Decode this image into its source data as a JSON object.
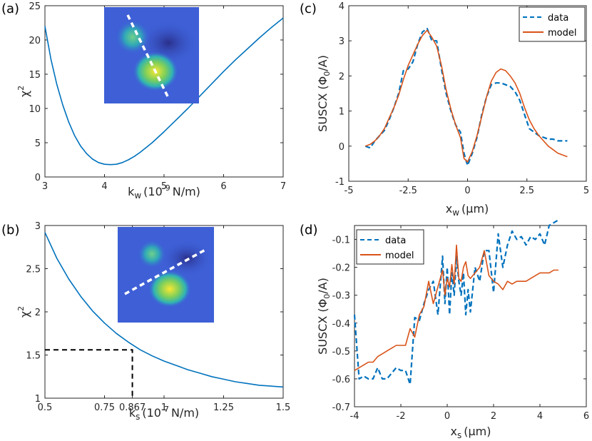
{
  "colors": {
    "data": "#0072BD",
    "model": "#D95319",
    "axis": "#262626",
    "dashed_ref": "#000000"
  },
  "chart_data": [
    {
      "id": "a",
      "panel_label": "(a)",
      "type": "line",
      "xlabel": "k",
      "xlabel_sub": "w",
      "xlabel_rest": "(10",
      "xlabel_sup": "-9",
      "xlabel_tail": "N/m)",
      "ylabel": "χ",
      "ylabel_sup": "2",
      "xlim": [
        3,
        7
      ],
      "ylim": [
        0,
        25
      ],
      "xticks": [
        3,
        4,
        5,
        6,
        7
      ],
      "xtick_labels": [
        "3",
        "4",
        "5",
        "6",
        "7"
      ],
      "yticks": [
        0,
        5,
        10,
        15,
        20,
        25
      ],
      "ytick_labels": [
        "0",
        "5",
        "10",
        "15",
        "20",
        "25"
      ],
      "series": [
        {
          "name": "chi2",
          "color_key": "data",
          "style": "solid",
          "x": [
            3.0,
            3.1,
            3.2,
            3.3,
            3.4,
            3.5,
            3.6,
            3.7,
            3.8,
            3.9,
            4.0,
            4.1,
            4.2,
            4.3,
            4.4,
            4.5,
            4.6,
            4.8,
            5.0,
            5.2,
            5.4,
            5.6,
            5.8,
            6.0,
            6.2,
            6.4,
            6.6,
            6.8,
            7.0
          ],
          "y": [
            22.0,
            17.2,
            13.5,
            10.5,
            8.0,
            6.0,
            4.5,
            3.4,
            2.6,
            2.1,
            1.85,
            1.8,
            1.85,
            2.1,
            2.5,
            3.0,
            3.6,
            5.0,
            6.6,
            8.3,
            10.0,
            11.8,
            13.6,
            15.4,
            17.1,
            18.7,
            20.3,
            21.8,
            23.2
          ]
        }
      ],
      "inset": "image of two magnetic spots with white dashed line cut"
    },
    {
      "id": "b",
      "panel_label": "(b)",
      "type": "line",
      "xlabel": "k",
      "xlabel_sub": "s",
      "xlabel_rest": "(10",
      "xlabel_sup": "-7",
      "xlabel_tail": "N/m)",
      "ylabel": "χ",
      "ylabel_sup": "2",
      "xlim": [
        0.5,
        1.5
      ],
      "ylim": [
        1,
        3
      ],
      "xticks": [
        0.5,
        0.75,
        0.867,
        1.0,
        1.25,
        1.5
      ],
      "xtick_labels": [
        "0.5",
        "0.75",
        "0.867",
        "1",
        "1.25",
        "1.5"
      ],
      "yticks": [
        1,
        1.5,
        2,
        2.5,
        3
      ],
      "ytick_labels": [
        "1",
        "1.5",
        "2",
        "2.5",
        "3"
      ],
      "series": [
        {
          "name": "chi2",
          "color_key": "data",
          "style": "solid",
          "x": [
            0.5,
            0.55,
            0.6,
            0.65,
            0.7,
            0.75,
            0.8,
            0.85,
            0.9,
            0.95,
            1.0,
            1.05,
            1.1,
            1.15,
            1.2,
            1.25,
            1.3,
            1.35,
            1.4,
            1.45,
            1.5
          ],
          "y": [
            2.92,
            2.62,
            2.38,
            2.18,
            2.01,
            1.87,
            1.75,
            1.65,
            1.56,
            1.49,
            1.43,
            1.38,
            1.33,
            1.29,
            1.25,
            1.22,
            1.19,
            1.17,
            1.15,
            1.14,
            1.13
          ]
        }
      ],
      "reference": {
        "x": 0.867,
        "y": 1.56
      },
      "inset": "image of two magnetic spots with white dashed line cut"
    },
    {
      "id": "c",
      "panel_label": "(c)",
      "type": "line",
      "xlabel": "x",
      "xlabel_sub": "w",
      "xlabel_rest": "(",
      "xlabel_mu": "μm)",
      "ylabel": "SUSCX (Φ",
      "ylabel_sub": "0",
      "ylabel_tail": "/A)",
      "xlim": [
        -5,
        5
      ],
      "ylim": [
        -1,
        4
      ],
      "xticks": [
        -5,
        -2.5,
        0,
        2.5,
        5
      ],
      "xtick_labels": [
        "-5",
        "-2.5",
        "0",
        "2.5",
        "5"
      ],
      "yticks": [
        -1,
        0,
        1,
        2,
        3,
        4
      ],
      "ytick_labels": [
        "-1",
        "0",
        "1",
        "2",
        "3",
        "4"
      ],
      "legend": {
        "position": "top-right",
        "entries": [
          "data",
          "model"
        ]
      },
      "series": [
        {
          "name": "data",
          "color_key": "data",
          "style": "dashed",
          "x": [
            -4.3,
            -4.1,
            -3.9,
            -3.7,
            -3.5,
            -3.3,
            -3.1,
            -2.9,
            -2.7,
            -2.5,
            -2.3,
            -2.1,
            -1.9,
            -1.7,
            -1.5,
            -1.3,
            -1.1,
            -0.9,
            -0.7,
            -0.5,
            -0.3,
            -0.15,
            0.0,
            0.2,
            0.4,
            0.6,
            0.8,
            1.0,
            1.2,
            1.4,
            1.6,
            1.8,
            2.0,
            2.2,
            2.4,
            2.6,
            2.8,
            3.0,
            3.2,
            3.4,
            3.6,
            3.8,
            4.0,
            4.2
          ],
          "y": [
            0.0,
            -0.05,
            0.15,
            0.3,
            0.45,
            0.75,
            1.1,
            1.5,
            2.15,
            2.2,
            2.4,
            2.9,
            3.25,
            3.35,
            3.0,
            3.0,
            2.2,
            1.5,
            1.0,
            0.6,
            0.4,
            -0.2,
            -0.55,
            -0.2,
            0.25,
            0.9,
            1.4,
            1.75,
            1.8,
            1.8,
            1.75,
            1.7,
            1.55,
            1.3,
            0.9,
            0.5,
            0.4,
            0.3,
            0.25,
            0.2,
            0.2,
            0.15,
            0.15,
            0.15
          ]
        },
        {
          "name": "model",
          "color_key": "model",
          "style": "solid",
          "x": [
            -4.3,
            -4.1,
            -3.9,
            -3.7,
            -3.5,
            -3.3,
            -3.1,
            -2.9,
            -2.7,
            -2.5,
            -2.3,
            -2.1,
            -1.9,
            -1.7,
            -1.5,
            -1.3,
            -1.1,
            -0.9,
            -0.7,
            -0.5,
            -0.3,
            -0.15,
            0.0,
            0.2,
            0.4,
            0.6,
            0.8,
            1.0,
            1.2,
            1.4,
            1.6,
            1.8,
            2.0,
            2.2,
            2.4,
            2.6,
            2.8,
            3.0,
            3.2,
            3.4,
            3.6,
            3.8,
            4.0,
            4.2
          ],
          "y": [
            0.0,
            0.05,
            0.15,
            0.3,
            0.5,
            0.8,
            1.1,
            1.45,
            1.9,
            2.3,
            2.6,
            2.9,
            3.15,
            3.3,
            3.1,
            2.85,
            2.3,
            1.6,
            1.05,
            0.6,
            0.25,
            -0.35,
            -0.45,
            -0.15,
            0.3,
            0.85,
            1.4,
            1.85,
            2.1,
            2.2,
            2.15,
            2.0,
            1.8,
            1.5,
            1.1,
            0.75,
            0.5,
            0.3,
            0.15,
            0.0,
            -0.1,
            -0.2,
            -0.25,
            -0.3
          ]
        }
      ]
    },
    {
      "id": "d",
      "panel_label": "(d)",
      "type": "line",
      "xlabel": "x",
      "xlabel_sub": "s",
      "xlabel_rest": "(",
      "xlabel_mu": "μm)",
      "ylabel": "SUSCX (Φ",
      "ylabel_sub": "0",
      "ylabel_tail": "/A)",
      "xlim": [
        -4,
        6
      ],
      "ylim": [
        -0.7,
        -0.05
      ],
      "xticks": [
        -4,
        -2,
        0,
        2,
        4,
        6
      ],
      "xtick_labels": [
        "-4",
        "-2",
        "0",
        "2",
        "4",
        "6"
      ],
      "yticks": [
        -0.7,
        -0.6,
        -0.5,
        -0.4,
        -0.3,
        -0.2,
        -0.1
      ],
      "ytick_labels": [
        "-0.7",
        "-0.6",
        "-0.5",
        "-0.4",
        "-0.3",
        "-0.2",
        "-0.1"
      ],
      "legend": {
        "position": "top-left",
        "entries": [
          "data",
          "model"
        ]
      },
      "series": [
        {
          "name": "data",
          "color_key": "data",
          "style": "dashed",
          "x": [
            -4.0,
            -3.8,
            -3.6,
            -3.4,
            -3.2,
            -3.0,
            -2.8,
            -2.6,
            -2.4,
            -2.2,
            -2.0,
            -1.8,
            -1.6,
            -1.4,
            -1.2,
            -1.0,
            -0.8,
            -0.6,
            -0.4,
            -0.2,
            -0.1,
            0.0,
            0.1,
            0.2,
            0.3,
            0.4,
            0.5,
            0.6,
            0.7,
            0.8,
            0.9,
            1.0,
            1.2,
            1.4,
            1.6,
            1.8,
            2.0,
            2.2,
            2.4,
            2.6,
            2.8,
            3.0,
            3.2,
            3.4,
            3.6,
            3.8,
            4.0,
            4.2,
            4.4,
            4.6,
            4.8
          ],
          "y": [
            -0.37,
            -0.6,
            -0.59,
            -0.6,
            -0.6,
            -0.56,
            -0.6,
            -0.6,
            -0.58,
            -0.56,
            -0.57,
            -0.57,
            -0.62,
            -0.38,
            -0.39,
            -0.33,
            -0.28,
            -0.25,
            -0.37,
            -0.16,
            -0.33,
            -0.2,
            -0.37,
            -0.22,
            -0.3,
            -0.16,
            -0.25,
            -0.3,
            -0.22,
            -0.37,
            -0.28,
            -0.36,
            -0.2,
            -0.25,
            -0.14,
            -0.14,
            -0.29,
            -0.08,
            -0.2,
            -0.12,
            -0.07,
            -0.1,
            -0.09,
            -0.12,
            -0.09,
            -0.1,
            -0.08,
            -0.12,
            -0.05,
            -0.04,
            -0.03
          ]
        },
        {
          "name": "model",
          "color_key": "model",
          "style": "solid",
          "x": [
            -4.0,
            -3.8,
            -3.6,
            -3.4,
            -3.2,
            -3.0,
            -2.8,
            -2.6,
            -2.4,
            -2.2,
            -2.0,
            -1.8,
            -1.6,
            -1.4,
            -1.2,
            -1.0,
            -0.8,
            -0.6,
            -0.4,
            -0.2,
            -0.1,
            0.0,
            0.1,
            0.2,
            0.3,
            0.4,
            0.5,
            0.6,
            0.7,
            0.8,
            0.9,
            1.0,
            1.2,
            1.4,
            1.6,
            1.8,
            2.0,
            2.2,
            2.4,
            2.6,
            2.8,
            3.0,
            3.2,
            3.4,
            3.6,
            3.8,
            4.0,
            4.2,
            4.4,
            4.6,
            4.8
          ],
          "y": [
            -0.57,
            -0.56,
            -0.55,
            -0.54,
            -0.54,
            -0.52,
            -0.51,
            -0.5,
            -0.49,
            -0.48,
            -0.48,
            -0.48,
            -0.42,
            -0.45,
            -0.37,
            -0.34,
            -0.25,
            -0.33,
            -0.27,
            -0.21,
            -0.3,
            -0.24,
            -0.27,
            -0.19,
            -0.26,
            -0.12,
            -0.24,
            -0.25,
            -0.2,
            -0.18,
            -0.23,
            -0.24,
            -0.22,
            -0.2,
            -0.14,
            -0.23,
            -0.25,
            -0.26,
            -0.28,
            -0.25,
            -0.26,
            -0.25,
            -0.25,
            -0.25,
            -0.24,
            -0.23,
            -0.22,
            -0.22,
            -0.22,
            -0.21,
            -0.21
          ]
        }
      ]
    }
  ]
}
